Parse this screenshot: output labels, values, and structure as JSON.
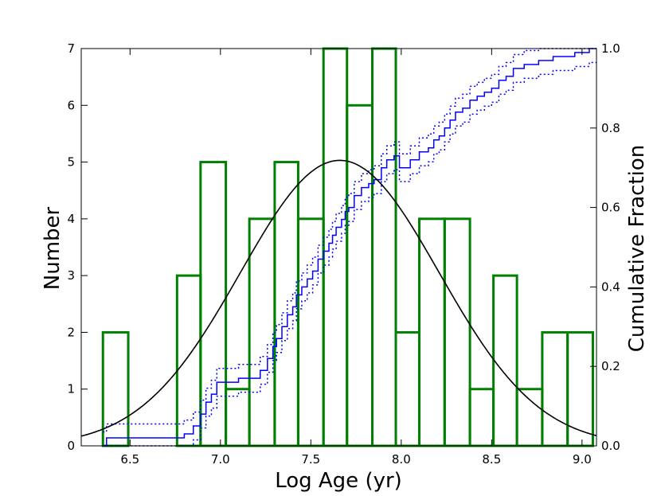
{
  "chart_data": {
    "type": "bar",
    "xlabel": "Log Age (yr)",
    "ylabel": "Number",
    "y2label": "Cumulative Fraction",
    "xlim": [
      6.23,
      9.08
    ],
    "ylim": [
      0,
      7
    ],
    "y2lim": [
      0,
      1.0
    ],
    "xticks": [
      "6.5",
      "7.0",
      "7.5",
      "8.0",
      "8.5",
      "9.0"
    ],
    "yticks": [
      "0",
      "1",
      "2",
      "3",
      "4",
      "5",
      "6",
      "7"
    ],
    "y2ticks": [
      "0.0",
      "0.2",
      "0.4",
      "0.6",
      "0.8",
      "1.0"
    ],
    "grid": false,
    "histogram": {
      "color": "#008000",
      "bin_edges": [
        6.35,
        6.49,
        6.76,
        6.89,
        7.03,
        7.16,
        7.3,
        7.43,
        7.57,
        7.7,
        7.84,
        7.97,
        8.1,
        8.24,
        8.38,
        8.51,
        8.64,
        8.78,
        8.92,
        9.06
      ],
      "values": [
        2,
        0,
        3,
        5,
        1,
        4,
        5,
        4,
        7,
        6,
        7,
        2,
        4,
        4,
        1,
        3,
        1,
        2,
        2
      ]
    },
    "gaussian_fit": {
      "color": "#000000",
      "mean": 7.66,
      "sigma": 0.55,
      "amplitude": 5.03
    },
    "cumulative": {
      "color": "#0000ff",
      "x": [
        6.35,
        6.37,
        6.8,
        6.85,
        6.89,
        6.92,
        6.95,
        6.98,
        7.1,
        7.22,
        7.26,
        7.29,
        7.31,
        7.34,
        7.37,
        7.4,
        7.42,
        7.45,
        7.48,
        7.51,
        7.54,
        7.57,
        7.6,
        7.62,
        7.64,
        7.67,
        7.69,
        7.71,
        7.74,
        7.78,
        7.82,
        7.85,
        7.89,
        7.92,
        7.96,
        7.99,
        8.05,
        8.1,
        8.15,
        8.18,
        8.21,
        8.24,
        8.27,
        8.3,
        8.34,
        8.38,
        8.42,
        8.46,
        8.5,
        8.54,
        8.58,
        8.62,
        8.68,
        8.76,
        8.84,
        8.9,
        8.96,
        9.04,
        9.08
      ],
      "y": [
        0.0,
        0.02,
        0.03,
        0.05,
        0.08,
        0.11,
        0.13,
        0.16,
        0.17,
        0.19,
        0.22,
        0.25,
        0.27,
        0.3,
        0.33,
        0.35,
        0.38,
        0.4,
        0.42,
        0.44,
        0.47,
        0.49,
        0.51,
        0.53,
        0.55,
        0.57,
        0.59,
        0.6,
        0.63,
        0.65,
        0.66,
        0.67,
        0.7,
        0.72,
        0.73,
        0.7,
        0.72,
        0.74,
        0.75,
        0.77,
        0.78,
        0.8,
        0.82,
        0.84,
        0.85,
        0.87,
        0.88,
        0.89,
        0.9,
        0.92,
        0.93,
        0.95,
        0.96,
        0.97,
        0.98,
        0.98,
        0.99,
        1.0,
        1.0
      ],
      "band": 0.035
    }
  }
}
